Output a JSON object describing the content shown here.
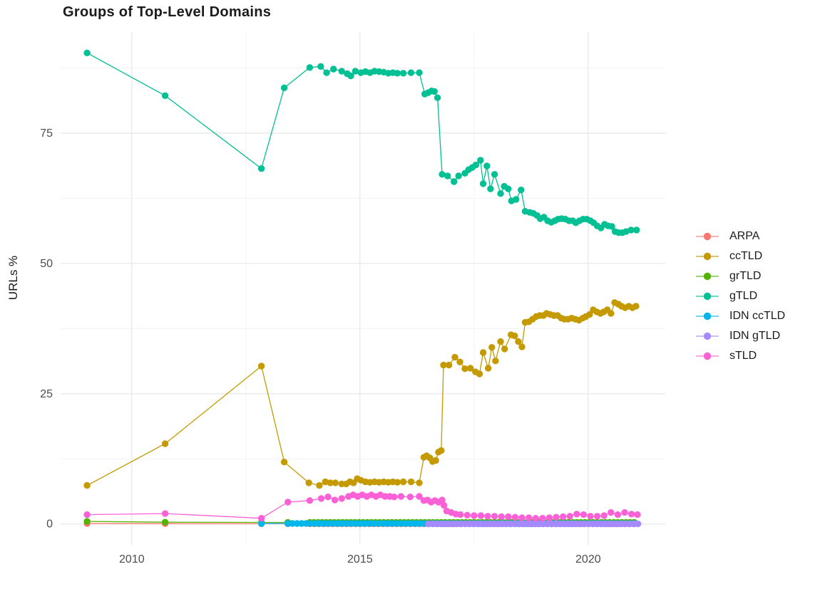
{
  "title": "Groups of Top-Level Domains",
  "axes": {
    "y_label": "URLs %",
    "x_tick_labels": [
      "2010",
      "2015",
      "2020"
    ],
    "y_tick_labels": [
      "0",
      "25",
      "50",
      "75"
    ],
    "tick_color": "#4d4d4d"
  },
  "grid": {
    "major_color": "#e8e8e8",
    "minor_color": "#f3f3f3"
  },
  "legend": {
    "position": "right",
    "items": [
      "ARPA",
      "ccTLD",
      "grTLD",
      "gTLD",
      "IDN ccTLD",
      "IDN gTLD",
      "sTLD"
    ]
  },
  "chart_data": {
    "type": "line",
    "title": "Groups of Top-Level Domains",
    "xlabel": "",
    "ylabel": "URLs %",
    "xlim": [
      2008.44,
      2021.69
    ],
    "ylim": [
      -4,
      94.4
    ],
    "x_major_ticks": [
      2010,
      2015,
      2020
    ],
    "x_minor_ticks": [
      2012.5,
      2017.5
    ],
    "y_major_ticks": [
      0,
      25,
      50,
      75
    ],
    "y_minor_ticks": [
      12.5,
      37.5,
      62.5,
      87.5
    ],
    "grid": true,
    "legend_position": "right",
    "series": [
      {
        "name": "ARPA",
        "color": "#F8766D",
        "points": [
          [
            2009.02,
            0.1
          ],
          [
            2010.73,
            0.07
          ],
          [
            2012.84,
            0.05
          ],
          [
            2013.42,
            0.05
          ]
        ],
        "runs": [
          {
            "from": 2013.9,
            "to": 2021.0,
            "step": 0.1,
            "value": 0.05
          }
        ]
      },
      {
        "name": "ccTLD",
        "color": "#C49A00",
        "points": [
          [
            2009.02,
            7.4
          ],
          [
            2010.73,
            15.4
          ],
          [
            2012.84,
            30.3
          ],
          [
            2013.34,
            11.9
          ],
          [
            2013.88,
            7.9
          ],
          [
            2014.11,
            7.4
          ],
          [
            2014.24,
            8.1
          ],
          [
            2014.35,
            7.9
          ],
          [
            2014.46,
            7.9
          ],
          [
            2014.6,
            7.7
          ],
          [
            2014.7,
            7.7
          ],
          [
            2014.78,
            8.1
          ],
          [
            2014.86,
            7.9
          ],
          [
            2014.94,
            8.7
          ],
          [
            2015.02,
            8.4
          ],
          [
            2015.12,
            8.1
          ],
          [
            2015.22,
            8.0
          ],
          [
            2015.32,
            8.1
          ],
          [
            2015.42,
            8.0
          ],
          [
            2015.52,
            8.1
          ],
          [
            2015.62,
            8.0
          ],
          [
            2015.72,
            8.1
          ],
          [
            2015.82,
            8.0
          ],
          [
            2015.95,
            8.1
          ],
          [
            2016.12,
            8.1
          ],
          [
            2016.3,
            7.9
          ],
          [
            2016.4,
            12.8
          ],
          [
            2016.46,
            13.1
          ],
          [
            2016.53,
            12.7
          ],
          [
            2016.59,
            12.0
          ],
          [
            2016.66,
            12.2
          ],
          [
            2016.72,
            13.8
          ],
          [
            2016.78,
            14.1
          ],
          [
            2016.83,
            30.5
          ],
          [
            2016.95,
            30.5
          ],
          [
            2017.08,
            32.0
          ],
          [
            2017.19,
            31.1
          ],
          [
            2017.3,
            29.8
          ],
          [
            2017.42,
            29.9
          ],
          [
            2017.53,
            29.2
          ],
          [
            2017.62,
            28.8
          ],
          [
            2017.7,
            32.9
          ],
          [
            2017.81,
            29.9
          ],
          [
            2017.89,
            33.9
          ],
          [
            2017.97,
            31.3
          ],
          [
            2018.08,
            35.0
          ],
          [
            2018.17,
            33.6
          ],
          [
            2018.31,
            36.3
          ],
          [
            2018.39,
            36.1
          ],
          [
            2018.47,
            35.0
          ],
          [
            2018.55,
            34.0
          ],
          [
            2018.62,
            38.7
          ],
          [
            2018.7,
            38.8
          ],
          [
            2018.78,
            39.3
          ],
          [
            2018.86,
            39.8
          ],
          [
            2018.94,
            40.0
          ],
          [
            2019.02,
            40.0
          ],
          [
            2019.09,
            40.4
          ],
          [
            2019.17,
            40.2
          ],
          [
            2019.25,
            40.0
          ],
          [
            2019.33,
            40.0
          ],
          [
            2019.41,
            39.5
          ],
          [
            2019.48,
            39.3
          ],
          [
            2019.56,
            39.3
          ],
          [
            2019.64,
            39.5
          ],
          [
            2019.72,
            39.3
          ],
          [
            2019.8,
            39.1
          ],
          [
            2019.88,
            39.5
          ],
          [
            2019.95,
            39.8
          ],
          [
            2020.03,
            40.2
          ],
          [
            2020.11,
            41.1
          ],
          [
            2020.19,
            40.7
          ],
          [
            2020.27,
            40.4
          ],
          [
            2020.34,
            40.7
          ],
          [
            2020.42,
            41.1
          ],
          [
            2020.5,
            40.4
          ],
          [
            2020.58,
            42.5
          ],
          [
            2020.66,
            42.2
          ],
          [
            2020.73,
            41.8
          ],
          [
            2020.81,
            41.5
          ],
          [
            2020.89,
            41.8
          ],
          [
            2020.97,
            41.5
          ],
          [
            2021.05,
            41.8
          ]
        ],
        "runs": []
      },
      {
        "name": "grTLD",
        "color": "#53B400",
        "points": [
          [
            2009.02,
            0.5
          ],
          [
            2010.73,
            0.35
          ],
          [
            2012.84,
            0.3
          ],
          [
            2013.42,
            0.3
          ]
        ],
        "runs": [
          {
            "from": 2013.9,
            "to": 2021.05,
            "step": 0.09,
            "value": 0.3
          }
        ]
      },
      {
        "name": "gTLD",
        "color": "#00C094",
        "points": [
          [
            2009.02,
            90.4
          ],
          [
            2010.73,
            82.2
          ],
          [
            2012.84,
            68.2
          ],
          [
            2013.34,
            83.7
          ],
          [
            2013.9,
            87.6
          ],
          [
            2014.14,
            87.8
          ],
          [
            2014.27,
            86.6
          ],
          [
            2014.42,
            87.3
          ],
          [
            2014.6,
            86.9
          ],
          [
            2014.72,
            86.4
          ],
          [
            2014.8,
            86.0
          ],
          [
            2014.9,
            86.9
          ],
          [
            2015.02,
            86.6
          ],
          [
            2015.12,
            86.8
          ],
          [
            2015.22,
            86.6
          ],
          [
            2015.32,
            86.9
          ],
          [
            2015.42,
            86.8
          ],
          [
            2015.52,
            86.7
          ],
          [
            2015.62,
            86.5
          ],
          [
            2015.72,
            86.6
          ],
          [
            2015.82,
            86.5
          ],
          [
            2015.95,
            86.5
          ],
          [
            2016.12,
            86.6
          ],
          [
            2016.3,
            86.6
          ],
          [
            2016.42,
            82.5
          ],
          [
            2016.5,
            82.8
          ],
          [
            2016.57,
            83.1
          ],
          [
            2016.63,
            83.0
          ],
          [
            2016.7,
            81.8
          ],
          [
            2016.8,
            67.1
          ],
          [
            2016.92,
            66.8
          ],
          [
            2017.06,
            65.7
          ],
          [
            2017.16,
            66.8
          ],
          [
            2017.3,
            67.3
          ],
          [
            2017.38,
            68.0
          ],
          [
            2017.46,
            68.4
          ],
          [
            2017.54,
            68.9
          ],
          [
            2017.64,
            69.8
          ],
          [
            2017.7,
            65.3
          ],
          [
            2017.78,
            68.7
          ],
          [
            2017.86,
            64.3
          ],
          [
            2017.95,
            67.1
          ],
          [
            2018.08,
            63.4
          ],
          [
            2018.16,
            64.8
          ],
          [
            2018.25,
            64.3
          ],
          [
            2018.32,
            62.0
          ],
          [
            2018.42,
            62.3
          ],
          [
            2018.53,
            64.1
          ],
          [
            2018.62,
            60.0
          ],
          [
            2018.72,
            59.8
          ],
          [
            2018.8,
            59.6
          ],
          [
            2018.88,
            59.2
          ],
          [
            2018.95,
            58.6
          ],
          [
            2019.03,
            58.9
          ],
          [
            2019.11,
            58.2
          ],
          [
            2019.19,
            57.9
          ],
          [
            2019.27,
            58.2
          ],
          [
            2019.34,
            58.5
          ],
          [
            2019.42,
            58.6
          ],
          [
            2019.5,
            58.5
          ],
          [
            2019.58,
            58.2
          ],
          [
            2019.66,
            58.2
          ],
          [
            2019.73,
            57.8
          ],
          [
            2019.81,
            58.2
          ],
          [
            2019.89,
            58.5
          ],
          [
            2019.97,
            58.5
          ],
          [
            2020.05,
            58.2
          ],
          [
            2020.12,
            57.8
          ],
          [
            2020.2,
            57.2
          ],
          [
            2020.28,
            56.8
          ],
          [
            2020.36,
            57.5
          ],
          [
            2020.44,
            57.2
          ],
          [
            2020.52,
            57.1
          ],
          [
            2020.59,
            56.1
          ],
          [
            2020.67,
            55.9
          ],
          [
            2020.75,
            55.9
          ],
          [
            2020.83,
            56.1
          ],
          [
            2020.94,
            56.4
          ],
          [
            2021.06,
            56.4
          ]
        ],
        "runs": []
      },
      {
        "name": "IDN ccTLD",
        "color": "#00B6EB",
        "points": [
          [
            2012.84,
            0.1
          ]
        ],
        "runs": [
          {
            "from": 2013.42,
            "to": 2021.05,
            "step": 0.1,
            "value": 0.1
          }
        ]
      },
      {
        "name": "IDN gTLD",
        "color": "#A58AFF",
        "points": [],
        "runs": [
          {
            "from": 2016.5,
            "to": 2021.1,
            "step": 0.09,
            "value": 0.02
          }
        ]
      },
      {
        "name": "sTLD",
        "color": "#FB61D7",
        "points": [
          [
            2009.02,
            1.8
          ],
          [
            2010.73,
            2.0
          ],
          [
            2012.84,
            1.1
          ],
          [
            2013.42,
            4.2
          ],
          [
            2013.9,
            4.5
          ],
          [
            2014.15,
            4.9
          ],
          [
            2014.3,
            5.2
          ],
          [
            2014.45,
            4.6
          ],
          [
            2014.6,
            4.9
          ],
          [
            2014.75,
            5.3
          ],
          [
            2014.85,
            5.6
          ],
          [
            2014.95,
            5.3
          ],
          [
            2015.05,
            5.6
          ],
          [
            2015.15,
            5.3
          ],
          [
            2015.25,
            5.6
          ],
          [
            2015.35,
            5.3
          ],
          [
            2015.45,
            5.6
          ],
          [
            2015.55,
            5.3
          ],
          [
            2015.65,
            5.3
          ],
          [
            2015.75,
            5.2
          ],
          [
            2015.9,
            5.3
          ],
          [
            2016.1,
            5.2
          ],
          [
            2016.3,
            5.3
          ],
          [
            2016.4,
            4.5
          ],
          [
            2016.48,
            4.6
          ],
          [
            2016.56,
            4.2
          ],
          [
            2016.64,
            4.5
          ],
          [
            2016.72,
            4.2
          ],
          [
            2016.8,
            4.6
          ],
          [
            2016.84,
            3.6
          ],
          [
            2016.9,
            2.5
          ],
          [
            2017.0,
            2.2
          ],
          [
            2017.1,
            1.9
          ],
          [
            2017.2,
            1.8
          ],
          [
            2017.35,
            1.7
          ],
          [
            2017.5,
            1.6
          ],
          [
            2017.65,
            1.6
          ],
          [
            2017.8,
            1.5
          ],
          [
            2017.95,
            1.5
          ],
          [
            2018.1,
            1.4
          ],
          [
            2018.25,
            1.4
          ],
          [
            2018.4,
            1.3
          ],
          [
            2018.55,
            1.2
          ],
          [
            2018.7,
            1.2
          ],
          [
            2018.85,
            1.1
          ],
          [
            2019.0,
            1.1
          ],
          [
            2019.15,
            1.2
          ],
          [
            2019.3,
            1.3
          ],
          [
            2019.45,
            1.4
          ],
          [
            2019.6,
            1.5
          ],
          [
            2019.75,
            1.9
          ],
          [
            2019.9,
            1.8
          ],
          [
            2020.05,
            1.5
          ],
          [
            2020.2,
            1.5
          ],
          [
            2020.35,
            1.6
          ],
          [
            2020.5,
            2.2
          ],
          [
            2020.65,
            1.8
          ],
          [
            2020.8,
            2.2
          ],
          [
            2020.95,
            1.9
          ],
          [
            2021.08,
            1.8
          ]
        ],
        "runs": []
      }
    ]
  }
}
